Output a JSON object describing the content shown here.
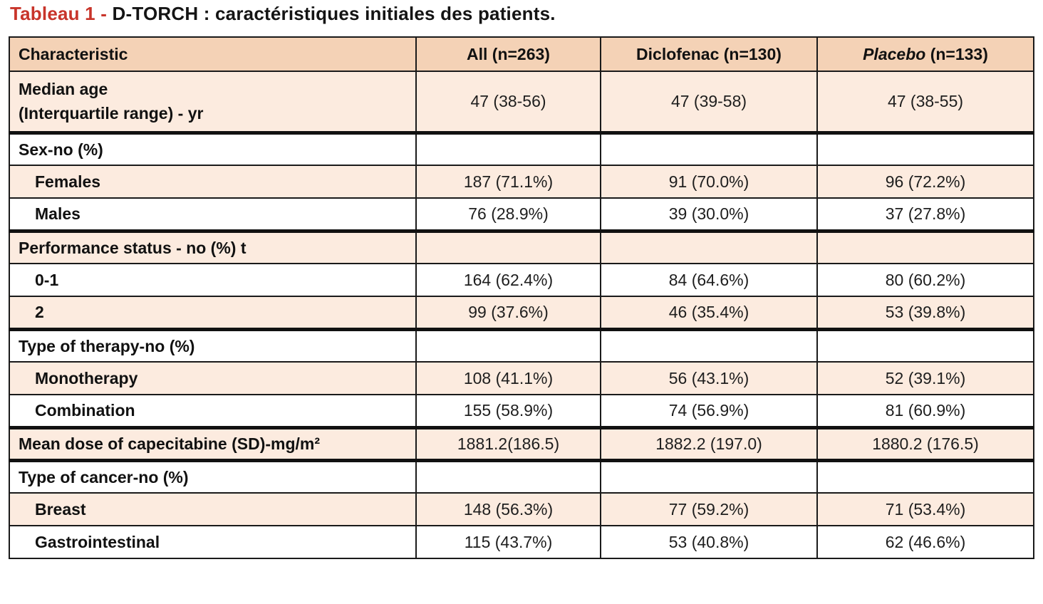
{
  "title": {
    "prefix": "Tableau 1 -",
    "text": " D-TORCH : caractéristiques initiales des patients."
  },
  "table": {
    "headers": {
      "characteristic": "Characteristic",
      "all": "All (n=263)",
      "diclofenac": "Diclofenac (n=130)",
      "placebo_name": "Placebo",
      "placebo_n": " (n=133)"
    },
    "rows": [
      {
        "label": "Median age",
        "label2": "(Interquartile range) - yr",
        "all": "47 (38-56)",
        "diclofenac": "47 (39-58)",
        "placebo": "47 (38-55)"
      },
      {
        "label": "Sex-no (%)",
        "all": "",
        "diclofenac": "",
        "placebo": ""
      },
      {
        "label": "Females",
        "all": "187 (71.1%)",
        "diclofenac": "91 (70.0%)",
        "placebo": "96 (72.2%)"
      },
      {
        "label": "Males",
        "all": "76 (28.9%)",
        "diclofenac": "39 (30.0%)",
        "placebo": "37 (27.8%)"
      },
      {
        "label": "Performance status - no (%) t",
        "all": "",
        "diclofenac": "",
        "placebo": ""
      },
      {
        "label": "0-1",
        "all": "164 (62.4%)",
        "diclofenac": "84 (64.6%)",
        "placebo": "80 (60.2%)"
      },
      {
        "label": "2",
        "all": "99 (37.6%)",
        "diclofenac": "46 (35.4%)",
        "placebo": "53 (39.8%)"
      },
      {
        "label": "Type of therapy-no (%)",
        "all": "",
        "diclofenac": "",
        "placebo": ""
      },
      {
        "label": "Monotherapy",
        "all": "108 (41.1%)",
        "diclofenac": "56 (43.1%)",
        "placebo": "52 (39.1%)"
      },
      {
        "label": "Combination",
        "all": "155 (58.9%)",
        "diclofenac": "74 (56.9%)",
        "placebo": "81 (60.9%)"
      },
      {
        "label": "Mean dose of capecitabine (SD)-mg/m²",
        "all": "1881.2(186.5)",
        "diclofenac": "1882.2 (197.0)",
        "placebo": "1880.2 (176.5)"
      },
      {
        "label": "Type of cancer-no (%)",
        "all": "",
        "diclofenac": "",
        "placebo": ""
      },
      {
        "label": "Breast",
        "all": "148 (56.3%)",
        "diclofenac": "77 (59.2%)",
        "placebo": "71 (53.4%)"
      },
      {
        "label": "Gastrointestinal",
        "all": "115 (43.7%)",
        "diclofenac": "53 (40.8%)",
        "placebo": "62 (46.6%)"
      }
    ]
  },
  "colors": {
    "title_prefix": "#c8342a",
    "header_bg": "#f4d2b6",
    "shaded_row_bg": "#fcebdf",
    "border": "#1a1a1a"
  }
}
